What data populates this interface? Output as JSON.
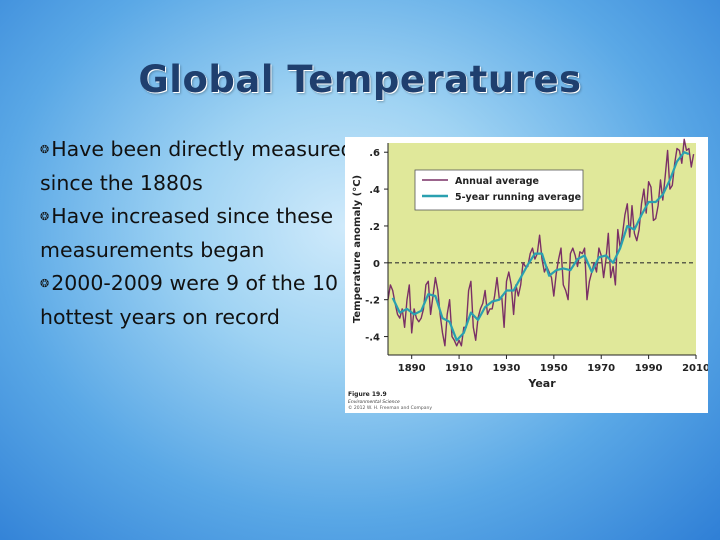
{
  "slide": {
    "title": "Global Temperatures",
    "bullets": [
      "Have been directly measured since the 1880s",
      "Have increased since these measurements began",
      "2000-2009 were 9 of the 10 hottest years on record"
    ],
    "bullet_glyph": "❂"
  },
  "colors": {
    "title": "#1f3f6e",
    "plot_background": "#e0e89a",
    "annual_line": "#7a3066",
    "running_line": "#2aa0b0"
  },
  "chart_data": {
    "type": "line",
    "xlabel": "Year",
    "ylabel": "Temperature anomaly (°C)",
    "xlim": [
      1880,
      2010
    ],
    "ylim": [
      -0.5,
      0.65
    ],
    "x_ticks": [
      1890,
      1910,
      1930,
      1950,
      1970,
      1990,
      2010
    ],
    "y_ticks": [
      {
        "value": 0.6,
        "label": ".6"
      },
      {
        "value": 0.4,
        "label": ".4"
      },
      {
        "value": 0.2,
        "label": ".2"
      },
      {
        "value": 0.0,
        "label": "0"
      },
      {
        "value": -0.2,
        "label": "-.2"
      },
      {
        "value": -0.4,
        "label": "-.4"
      }
    ],
    "zero_line": true,
    "legend_position": "top-left",
    "series": [
      {
        "name": "Annual average",
        "x": [
          1880,
          1881,
          1882,
          1883,
          1884,
          1885,
          1886,
          1887,
          1888,
          1889,
          1890,
          1891,
          1892,
          1893,
          1894,
          1895,
          1896,
          1897,
          1898,
          1899,
          1900,
          1901,
          1902,
          1903,
          1904,
          1905,
          1906,
          1907,
          1908,
          1909,
          1910,
          1911,
          1912,
          1913,
          1914,
          1915,
          1916,
          1917,
          1918,
          1919,
          1920,
          1921,
          1922,
          1923,
          1924,
          1925,
          1926,
          1927,
          1928,
          1929,
          1930,
          1931,
          1932,
          1933,
          1934,
          1935,
          1936,
          1937,
          1938,
          1939,
          1940,
          1941,
          1942,
          1943,
          1944,
          1945,
          1946,
          1947,
          1948,
          1949,
          1950,
          1951,
          1952,
          1953,
          1954,
          1955,
          1956,
          1957,
          1958,
          1959,
          1960,
          1961,
          1962,
          1963,
          1964,
          1965,
          1966,
          1967,
          1968,
          1969,
          1970,
          1971,
          1972,
          1973,
          1974,
          1975,
          1976,
          1977,
          1978,
          1979,
          1980,
          1981,
          1982,
          1983,
          1984,
          1985,
          1986,
          1987,
          1988,
          1989,
          1990,
          1991,
          1992,
          1993,
          1994,
          1995,
          1996,
          1997,
          1998,
          1999,
          2000,
          2001,
          2002,
          2003,
          2004,
          2005,
          2006,
          2007,
          2008,
          2009
        ],
        "values": [
          -0.2,
          -0.12,
          -0.15,
          -0.22,
          -0.28,
          -0.3,
          -0.25,
          -0.35,
          -0.2,
          -0.12,
          -0.38,
          -0.25,
          -0.3,
          -0.32,
          -0.3,
          -0.25,
          -0.12,
          -0.1,
          -0.28,
          -0.18,
          -0.08,
          -0.15,
          -0.28,
          -0.38,
          -0.45,
          -0.28,
          -0.2,
          -0.4,
          -0.42,
          -0.45,
          -0.42,
          -0.45,
          -0.35,
          -0.35,
          -0.15,
          -0.1,
          -0.35,
          -0.42,
          -0.3,
          -0.25,
          -0.22,
          -0.15,
          -0.28,
          -0.25,
          -0.25,
          -0.18,
          -0.08,
          -0.2,
          -0.18,
          -0.35,
          -0.1,
          -0.05,
          -0.12,
          -0.28,
          -0.12,
          -0.18,
          -0.12,
          0.0,
          -0.02,
          -0.02,
          0.05,
          0.08,
          0.02,
          0.05,
          0.15,
          0.02,
          -0.05,
          -0.02,
          -0.05,
          -0.08,
          -0.18,
          -0.06,
          0.02,
          0.08,
          -0.12,
          -0.15,
          -0.2,
          0.05,
          0.08,
          0.04,
          -0.02,
          0.06,
          0.05,
          0.08,
          -0.2,
          -0.1,
          -0.05,
          0.0,
          -0.05,
          0.08,
          0.04,
          -0.08,
          0.02,
          0.16,
          -0.08,
          -0.02,
          -0.12,
          0.18,
          0.08,
          0.16,
          0.26,
          0.32,
          0.14,
          0.31,
          0.16,
          0.12,
          0.18,
          0.32,
          0.4,
          0.27,
          0.44,
          0.41,
          0.23,
          0.24,
          0.31,
          0.45,
          0.34,
          0.47,
          0.61,
          0.4,
          0.42,
          0.54,
          0.62,
          0.61,
          0.54,
          0.67,
          0.61,
          0.62,
          0.52,
          0.59
        ]
      },
      {
        "name": "5-year running average",
        "x": [
          1882,
          1885,
          1888,
          1891,
          1894,
          1897,
          1900,
          1903,
          1906,
          1909,
          1912,
          1915,
          1918,
          1921,
          1924,
          1927,
          1930,
          1933,
          1936,
          1939,
          1942,
          1945,
          1948,
          1951,
          1954,
          1957,
          1960,
          1963,
          1966,
          1969,
          1972,
          1975,
          1978,
          1981,
          1984,
          1987,
          1990,
          1993,
          1996,
          1999,
          2002,
          2005,
          2007
        ],
        "values": [
          -0.19,
          -0.27,
          -0.25,
          -0.28,
          -0.26,
          -0.17,
          -0.18,
          -0.3,
          -0.32,
          -0.42,
          -0.38,
          -0.27,
          -0.31,
          -0.24,
          -0.21,
          -0.2,
          -0.15,
          -0.15,
          -0.08,
          -0.01,
          0.05,
          0.05,
          -0.07,
          -0.04,
          -0.03,
          -0.04,
          0.02,
          0.04,
          -0.05,
          0.03,
          0.04,
          0.0,
          0.08,
          0.2,
          0.18,
          0.26,
          0.33,
          0.33,
          0.37,
          0.45,
          0.55,
          0.6,
          0.59
        ]
      }
    ],
    "annotations": {
      "figure_label": "Figure 19.9",
      "book_title": "Environmental Science",
      "copyright": "© 2012 W. H. Freeman and Company"
    }
  }
}
